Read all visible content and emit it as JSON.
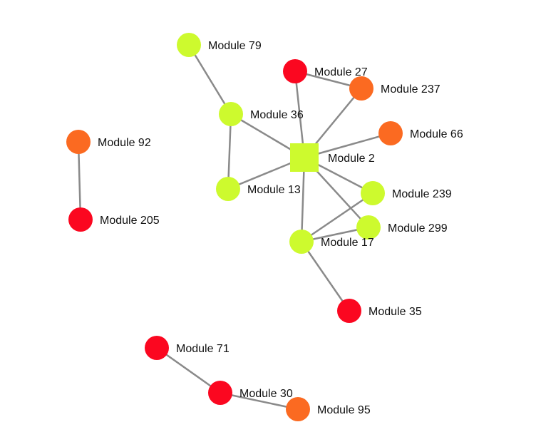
{
  "colors": {
    "lime": "#cdfa2e",
    "red": "#fb0720",
    "orange": "#fb6a21",
    "edge": "#8a8a8a"
  },
  "nodes": [
    {
      "id": "m79",
      "label": "Module 79",
      "color": "lime",
      "shape": "circle"
    },
    {
      "id": "m27",
      "label": "Module 27",
      "color": "red",
      "shape": "circle"
    },
    {
      "id": "m237",
      "label": "Module 237",
      "color": "orange",
      "shape": "circle"
    },
    {
      "id": "m36",
      "label": "Module 36",
      "color": "lime",
      "shape": "circle"
    },
    {
      "id": "m92",
      "label": "Module 92",
      "color": "orange",
      "shape": "circle"
    },
    {
      "id": "m66",
      "label": "Module 66",
      "color": "orange",
      "shape": "circle"
    },
    {
      "id": "m2",
      "label": "Module 2",
      "color": "lime",
      "shape": "square"
    },
    {
      "id": "m13",
      "label": "Module 13",
      "color": "lime",
      "shape": "circle"
    },
    {
      "id": "m239",
      "label": "Module 239",
      "color": "lime",
      "shape": "circle"
    },
    {
      "id": "m205",
      "label": "Module 205",
      "color": "red",
      "shape": "circle"
    },
    {
      "id": "m299",
      "label": "Module 299",
      "color": "lime",
      "shape": "circle"
    },
    {
      "id": "m17",
      "label": "Module 17",
      "color": "lime",
      "shape": "circle"
    },
    {
      "id": "m35",
      "label": "Module 35",
      "color": "red",
      "shape": "circle"
    },
    {
      "id": "m71",
      "label": "Module 71",
      "color": "red",
      "shape": "circle"
    },
    {
      "id": "m30",
      "label": "Module 30",
      "color": "red",
      "shape": "circle"
    },
    {
      "id": "m95",
      "label": "Module 95",
      "color": "orange",
      "shape": "circle"
    }
  ],
  "edges": [
    [
      "m79",
      "m36"
    ],
    [
      "m36",
      "m13"
    ],
    [
      "m36",
      "m2"
    ],
    [
      "m13",
      "m2"
    ],
    [
      "m27",
      "m237"
    ],
    [
      "m27",
      "m2"
    ],
    [
      "m237",
      "m2"
    ],
    [
      "m66",
      "m2"
    ],
    [
      "m2",
      "m239"
    ],
    [
      "m2",
      "m299"
    ],
    [
      "m2",
      "m17"
    ],
    [
      "m17",
      "m239"
    ],
    [
      "m17",
      "m299"
    ],
    [
      "m17",
      "m35"
    ],
    [
      "m92",
      "m205"
    ],
    [
      "m71",
      "m30"
    ],
    [
      "m30",
      "m95"
    ]
  ]
}
